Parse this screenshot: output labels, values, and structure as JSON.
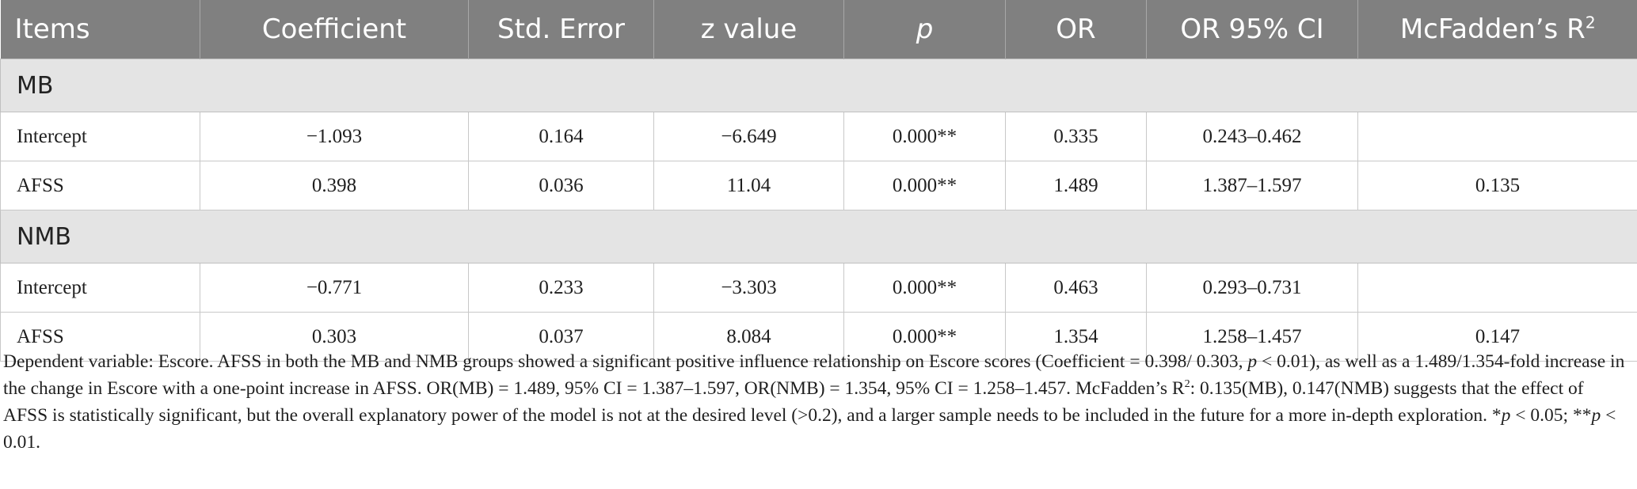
{
  "table": {
    "headers": [
      {
        "label": "Items"
      },
      {
        "label": "Coefficient"
      },
      {
        "label": "Std. Error"
      },
      {
        "label": "z value"
      },
      {
        "label": "p"
      },
      {
        "label": "OR"
      },
      {
        "label": "OR 95% CI"
      },
      {
        "label": "McFadden’s R",
        "sup": "2"
      }
    ],
    "groups": [
      {
        "label": "MB",
        "rows": [
          [
            "Intercept",
            "−1.093",
            "0.164",
            "−6.649",
            "0.000**",
            "0.335",
            "0.243–0.462",
            ""
          ],
          [
            "AFSS",
            "0.398",
            "0.036",
            "11.04",
            "0.000**",
            "1.489",
            "1.387–1.597",
            "0.135"
          ]
        ]
      },
      {
        "label": "NMB",
        "rows": [
          [
            "Intercept",
            "−0.771",
            "0.233",
            "−3.303",
            "0.000**",
            "0.463",
            "0.293–0.731",
            ""
          ],
          [
            "AFSS",
            "0.303",
            "0.037",
            "8.084",
            "0.000**",
            "1.354",
            "1.258–1.457",
            "0.147"
          ]
        ]
      }
    ]
  },
  "note": {
    "seg1": "Dependent variable: Escore. AFSS in both the MB and NMB groups showed a significant positive influence relationship on Escore scores (Coefficient = 0.398/ 0.303, ",
    "seg2_italic": "p",
    "seg3": " < 0.01), as well as a 1.489/1.354-fold increase in the change in Escore with a one-point increase in AFSS. OR(MB) = 1.489, 95% CI = 1.387–1.597, OR(NMB) = 1.354, 95% CI = 1.258–1.457. McFadden’s R",
    "seg4_sup": "2",
    "seg5": ": 0.135(MB), 0.147(NMB) suggests that the effect of AFSS is statistically significant, but the overall explanatory power of the model is not at the desired level (>0.2), and a larger sample needs to be included in the future for a more in-depth exploration. *",
    "seg6_italic": "p",
    "seg7": " < 0.05; **",
    "seg8_italic": "p",
    "seg9": " < 0.01."
  }
}
